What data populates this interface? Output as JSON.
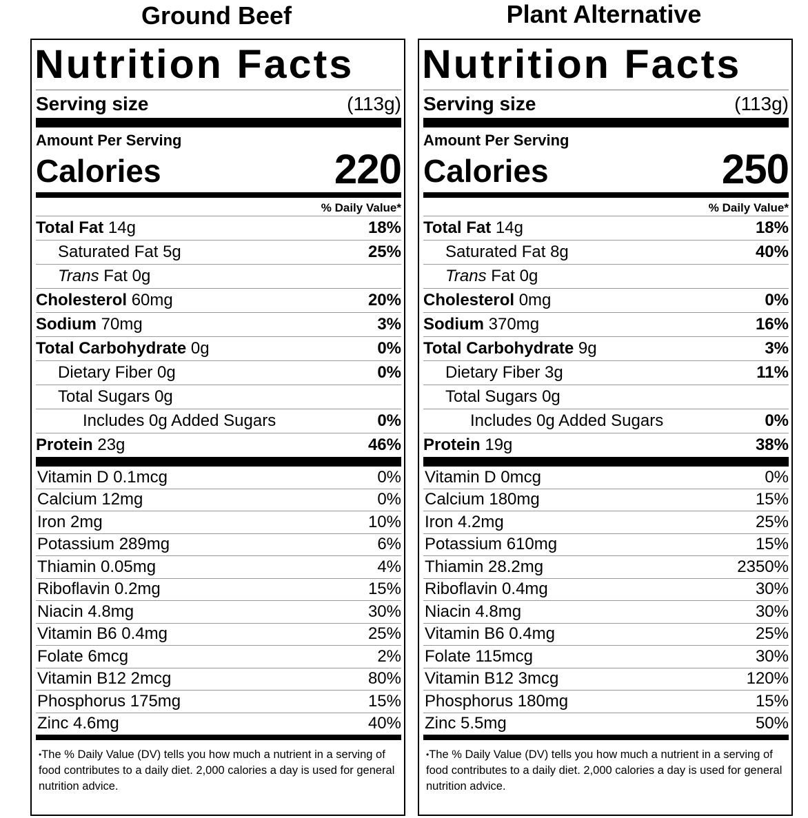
{
  "labels": [
    {
      "product": "Ground Beef",
      "title": "Nutrition Facts",
      "serving_label": "Serving size",
      "serving_value": "(113g)",
      "amount_per_serving": "Amount Per Serving",
      "calories_label": "Calories",
      "calories": "220",
      "dv_header": "% Daily Value*",
      "nutrients": [
        {
          "bold": "Total Fat",
          "amt": " 14g",
          "pct": "18%",
          "indent": 0
        },
        {
          "bold": "",
          "amt": "Saturated Fat 5g",
          "pct": "25%",
          "indent": 1
        },
        {
          "italic": "Trans",
          "amt": " Fat 0g",
          "pct": "",
          "indent": 1
        },
        {
          "bold": "Cholesterol",
          "amt": " 60mg",
          "pct": "20%",
          "indent": 0
        },
        {
          "bold": "Sodium",
          "amt": " 70mg",
          "pct": "3%",
          "indent": 0
        },
        {
          "bold": "Total Carbohydrate",
          "amt": " 0g",
          "pct": "0%",
          "indent": 0
        },
        {
          "bold": "",
          "amt": "Dietary Fiber 0g",
          "pct": "0%",
          "indent": 1
        },
        {
          "bold": "",
          "amt": "Total Sugars 0g",
          "pct": "",
          "indent": 1
        },
        {
          "bold": "",
          "amt": "Includes 0g Added Sugars",
          "pct": "0%",
          "indent": 2
        },
        {
          "bold": "Protein",
          "amt": " 23g",
          "pct": "46%",
          "indent": 0
        }
      ],
      "vitamins": [
        {
          "name": "Vitamin D 0.1mcg",
          "pct": "0%"
        },
        {
          "name": "Calcium 12mg",
          "pct": "0%"
        },
        {
          "name": "Iron 2mg",
          "pct": "10%"
        },
        {
          "name": "Potassium 289mg",
          "pct": "6%"
        },
        {
          "name": "Thiamin 0.05mg",
          "pct": "4%"
        },
        {
          "name": "Riboflavin 0.2mg",
          "pct": "15%"
        },
        {
          "name": "Niacin 4.8mg",
          "pct": "30%"
        },
        {
          "name": "Vitamin B6 0.4mg",
          "pct": "25%"
        },
        {
          "name": "Folate 6mcg",
          "pct": "2%"
        },
        {
          "name": "Vitamin B12 2mcg",
          "pct": "80%"
        },
        {
          "name": "Phosphorus 175mg",
          "pct": "15%"
        },
        {
          "name": "Zinc 4.6mg",
          "pct": "40%"
        }
      ],
      "footnote": "The % Daily Value (DV) tells you how much a nutrient in a serving of food contributes to a daily diet. 2,000 calories a day is used for general nutrition advice."
    },
    {
      "product": "Plant Alternative",
      "title": "Nutrition Facts",
      "serving_label": "Serving size",
      "serving_value": "(113g)",
      "amount_per_serving": "Amount Per Serving",
      "calories_label": "Calories",
      "calories": "250",
      "dv_header": "% Daily Value*",
      "nutrients": [
        {
          "bold": "Total Fat",
          "amt": " 14g",
          "pct": "18%",
          "indent": 0
        },
        {
          "bold": "",
          "amt": "Saturated Fat 8g",
          "pct": "40%",
          "indent": 1
        },
        {
          "italic": "Trans",
          "amt": " Fat 0g",
          "pct": "",
          "indent": 1
        },
        {
          "bold": "Cholesterol",
          "amt": " 0mg",
          "pct": "0%",
          "indent": 0
        },
        {
          "bold": "Sodium",
          "amt": " 370mg",
          "pct": "16%",
          "indent": 0
        },
        {
          "bold": "Total Carbohydrate",
          "amt": " 9g",
          "pct": "3%",
          "indent": 0
        },
        {
          "bold": "",
          "amt": "Dietary Fiber 3g",
          "pct": "11%",
          "indent": 1
        },
        {
          "bold": "",
          "amt": "Total Sugars 0g",
          "pct": "",
          "indent": 1
        },
        {
          "bold": "",
          "amt": "Includes 0g Added Sugars",
          "pct": "0%",
          "indent": 2
        },
        {
          "bold": "Protein",
          "amt": " 19g",
          "pct": "38%",
          "indent": 0
        }
      ],
      "vitamins": [
        {
          "name": "Vitamin D 0mcg",
          "pct": "0%"
        },
        {
          "name": "Calcium 180mg",
          "pct": "15%"
        },
        {
          "name": "Iron 4.2mg",
          "pct": "25%"
        },
        {
          "name": "Potassium 610mg",
          "pct": "15%"
        },
        {
          "name": "Thiamin 28.2mg",
          "pct": "2350%"
        },
        {
          "name": "Riboflavin 0.4mg",
          "pct": "30%"
        },
        {
          "name": "Niacin 4.8mg",
          "pct": "30%"
        },
        {
          "name": "Vitamin B6 0.4mg",
          "pct": "25%"
        },
        {
          "name": "Folate 115mcg",
          "pct": "30%"
        },
        {
          "name": "Vitamin B12 3mcg",
          "pct": "120%"
        },
        {
          "name": "Phosphorus 180mg",
          "pct": "15%"
        },
        {
          "name": "Zinc 5.5mg",
          "pct": "50%"
        }
      ],
      "footnote": "The % Daily Value (DV) tells you how much a nutrient in a serving of food contributes to a daily diet. 2,000 calories a day is used for general nutrition advice."
    }
  ]
}
